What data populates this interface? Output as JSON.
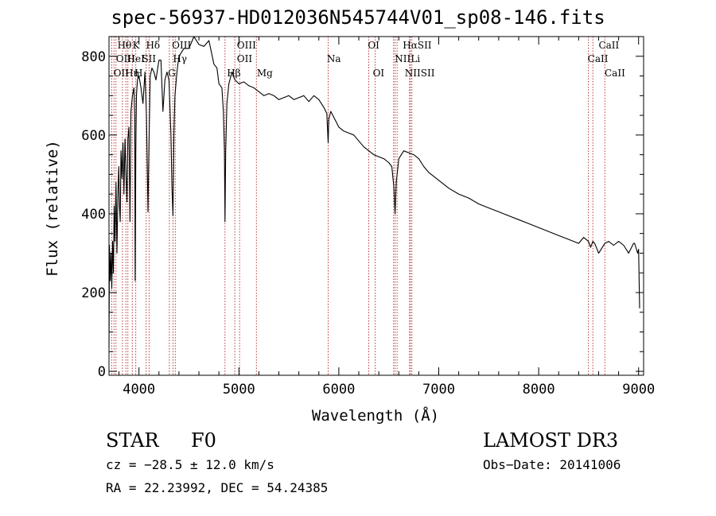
{
  "chart_data": {
    "type": "line",
    "title": "spec-56937-HD012036N545744V01_sp08-146.fits",
    "xlabel": "Wavelength (Å)",
    "ylabel": "Flux (relative)",
    "xlim": [
      3700,
      9050
    ],
    "ylim": [
      -10,
      850
    ],
    "xticks": [
      4000,
      5000,
      6000,
      7000,
      8000,
      9000
    ],
    "yticks": [
      0,
      200,
      400,
      600,
      800
    ],
    "series": [
      {
        "name": "flux",
        "x": [
          3700,
          3705,
          3712,
          3720,
          3728,
          3736,
          3744,
          3752,
          3760,
          3770,
          3780,
          3790,
          3798,
          3805,
          3812,
          3820,
          3830,
          3840,
          3850,
          3860,
          3870,
          3880,
          3889,
          3900,
          3910,
          3920,
          3935,
          3950,
          3958,
          3962,
          3968,
          3975,
          3985,
          4000,
          4020,
          4040,
          4060,
          4075,
          4090,
          4101,
          4112,
          4130,
          4150,
          4170,
          4200,
          4220,
          4240,
          4260,
          4280,
          4300,
          4320,
          4330,
          4340,
          4350,
          4360,
          4380,
          4400,
          4450,
          4500,
          4550,
          4600,
          4650,
          4700,
          4750,
          4780,
          4800,
          4830,
          4845,
          4855,
          4861,
          4868,
          4880,
          4900,
          4930,
          4960,
          5000,
          5050,
          5100,
          5150,
          5200,
          5250,
          5300,
          5350,
          5400,
          5450,
          5500,
          5550,
          5600,
          5650,
          5700,
          5750,
          5800,
          5850,
          5880,
          5893,
          5900,
          5920,
          5950,
          6000,
          6050,
          6100,
          6150,
          6200,
          6250,
          6300,
          6350,
          6400,
          6450,
          6500,
          6530,
          6550,
          6563,
          6575,
          6600,
          6650,
          6700,
          6750,
          6800,
          6850,
          6900,
          6950,
          7000,
          7100,
          7200,
          7300,
          7400,
          7500,
          7600,
          7700,
          7800,
          7900,
          8000,
          8100,
          8200,
          8300,
          8400,
          8450,
          8498,
          8520,
          8542,
          8560,
          8600,
          8662,
          8700,
          8750,
          8800,
          8850,
          8900,
          8950,
          8960,
          8990,
          9000,
          9010
        ],
        "values": [
          60,
          320,
          230,
          300,
          210,
          330,
          250,
          420,
          330,
          480,
          300,
          460,
          520,
          420,
          380,
          560,
          490,
          580,
          450,
          590,
          500,
          430,
          590,
          620,
          380,
          660,
          700,
          720,
          640,
          230,
          560,
          700,
          740,
          750,
          720,
          680,
          760,
          650,
          405,
          590,
          750,
          770,
          760,
          740,
          790,
          790,
          660,
          740,
          760,
          740,
          600,
          470,
          395,
          600,
          700,
          760,
          800,
          820,
          820,
          850,
          830,
          825,
          840,
          780,
          770,
          730,
          720,
          660,
          560,
          380,
          560,
          680,
          730,
          760,
          740,
          730,
          735,
          725,
          720,
          710,
          700,
          705,
          700,
          690,
          695,
          700,
          690,
          695,
          700,
          685,
          700,
          690,
          670,
          655,
          580,
          640,
          660,
          645,
          620,
          610,
          605,
          600,
          585,
          570,
          560,
          550,
          545,
          540,
          530,
          520,
          470,
          400,
          480,
          540,
          560,
          555,
          550,
          540,
          520,
          505,
          495,
          485,
          465,
          450,
          440,
          425,
          415,
          405,
          395,
          385,
          375,
          365,
          355,
          345,
          335,
          325,
          340,
          330,
          315,
          330,
          325,
          300,
          325,
          330,
          320,
          330,
          320,
          300,
          325,
          325,
          300,
          310,
          160
        ]
      }
    ],
    "lines": [
      {
        "x": 3727,
        "labels": [
          "OII"
        ]
      },
      {
        "x": 3750,
        "labels": [
          "Hθ"
        ]
      },
      {
        "x": 3770,
        "labels": [
          "Hη"
        ]
      },
      {
        "x": 3835,
        "labels": [
          "Hη"
        ]
      },
      {
        "x": 3869,
        "labels": [
          "NeIII"
        ]
      },
      {
        "x": 3889,
        "labels": [
          "HeI"
        ]
      },
      {
        "x": 3933,
        "labels": [
          "K"
        ]
      },
      {
        "x": 3968,
        "labels": [
          "H"
        ]
      },
      {
        "x": 4101,
        "labels": [
          "Hδ"
        ]
      },
      {
        "x": 4072,
        "labels": [
          "SII"
        ]
      },
      {
        "x": 4304,
        "labels": [
          "G"
        ]
      },
      {
        "x": 4340,
        "labels": [
          "Hγ"
        ]
      },
      {
        "x": 4363,
        "labels": [
          "OIII"
        ]
      },
      {
        "x": 4861,
        "labels": [
          "Hβ"
        ]
      },
      {
        "x": 4959,
        "labels": [
          "OIII"
        ]
      },
      {
        "x": 5007,
        "labels": [
          "OIII"
        ]
      },
      {
        "x": 5175,
        "labels": [
          "Mg"
        ]
      },
      {
        "x": 5893,
        "labels": [
          "Na"
        ]
      },
      {
        "x": 6300,
        "labels": [
          "OI"
        ]
      },
      {
        "x": 6364,
        "labels": [
          "OI"
        ]
      },
      {
        "x": 6548,
        "labels": [
          "NII"
        ]
      },
      {
        "x": 6563,
        "labels": [
          "Hα"
        ]
      },
      {
        "x": 6583,
        "labels": [
          "NII"
        ]
      },
      {
        "x": 6708,
        "labels": [
          "Li"
        ]
      },
      {
        "x": 6716,
        "labels": [
          "SII"
        ]
      },
      {
        "x": 6731,
        "labels": [
          "SII"
        ]
      },
      {
        "x": 8498,
        "labels": [
          "CaII"
        ]
      },
      {
        "x": 8542,
        "labels": [
          "CaII"
        ]
      },
      {
        "x": 8662,
        "labels": [
          "CaII"
        ]
      }
    ],
    "line_labels": [
      {
        "text": "Hθ",
        "x": 3785,
        "row": 1
      },
      {
        "text": "K",
        "x": 3935,
        "row": 1
      },
      {
        "text": "Hδ",
        "x": 4070,
        "row": 1
      },
      {
        "text": "OIII",
        "x": 4330,
        "row": 1
      },
      {
        "text": "OIII",
        "x": 4980,
        "row": 1
      },
      {
        "text": "OI",
        "x": 6290,
        "row": 1
      },
      {
        "text": "HαSII",
        "x": 6640,
        "row": 1
      },
      {
        "text": "CaII",
        "x": 8600,
        "row": 1
      },
      {
        "text": "OIII",
        "x": 3770,
        "row": 2
      },
      {
        "text": "HeI",
        "x": 3880,
        "row": 2
      },
      {
        "text": "SII",
        "x": 4030,
        "row": 2
      },
      {
        "text": "Hγ",
        "x": 4340,
        "row": 2
      },
      {
        "text": "OII",
        "x": 4980,
        "row": 2
      },
      {
        "text": "Na",
        "x": 5880,
        "row": 2
      },
      {
        "text": "NII",
        "x": 6560,
        "row": 2
      },
      {
        "text": "Li",
        "x": 6720,
        "row": 2
      },
      {
        "text": "CaII",
        "x": 8490,
        "row": 2
      },
      {
        "text": "OII",
        "x": 3745,
        "row": 3
      },
      {
        "text": "Hη",
        "x": 3860,
        "row": 3
      },
      {
        "text": "H",
        "x": 3955,
        "row": 3
      },
      {
        "text": "G",
        "x": 4290,
        "row": 3
      },
      {
        "text": "Hβ",
        "x": 4880,
        "row": 3
      },
      {
        "text": "Mg",
        "x": 5180,
        "row": 3
      },
      {
        "text": "OI",
        "x": 6340,
        "row": 3
      },
      {
        "text": "NIISII",
        "x": 6660,
        "row": 3
      },
      {
        "text": "CaII",
        "x": 8660,
        "row": 3
      }
    ]
  },
  "info": {
    "object_class": "STAR",
    "subclass": "F0",
    "survey": "LAMOST DR3",
    "cz": "cz = −28.5 ± 12.0 km/s",
    "obs_date": "Obs−Date: 20141006",
    "radec": "RA =  22.23992, DEC =  54.24385"
  },
  "colors": {
    "spectrum": "#000000",
    "line_markers": "#b22222",
    "background": "#ffffff"
  }
}
